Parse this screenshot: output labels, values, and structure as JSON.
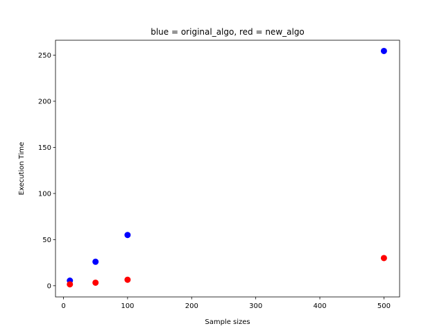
{
  "chart_data": {
    "type": "scatter",
    "title": "blue = original_algo, red = new_algo",
    "xlabel": "Sample sizes",
    "ylabel": "Execution Time",
    "xlim": [
      -12.45,
      524.45
    ],
    "ylim": [
      -12.15,
      266.15
    ],
    "xticks": [
      0,
      100,
      200,
      300,
      400,
      500
    ],
    "yticks": [
      0,
      50,
      100,
      150,
      200,
      250
    ],
    "grid": false,
    "series": [
      {
        "color": "#0000ff",
        "x": [
          10,
          50,
          100,
          500
        ],
        "y": [
          5.5,
          26,
          55,
          254.5
        ]
      },
      {
        "color": "#ff0000",
        "x": [
          10,
          50,
          100,
          500
        ],
        "y": [
          1.5,
          3.3,
          6.5,
          30
        ]
      }
    ]
  }
}
